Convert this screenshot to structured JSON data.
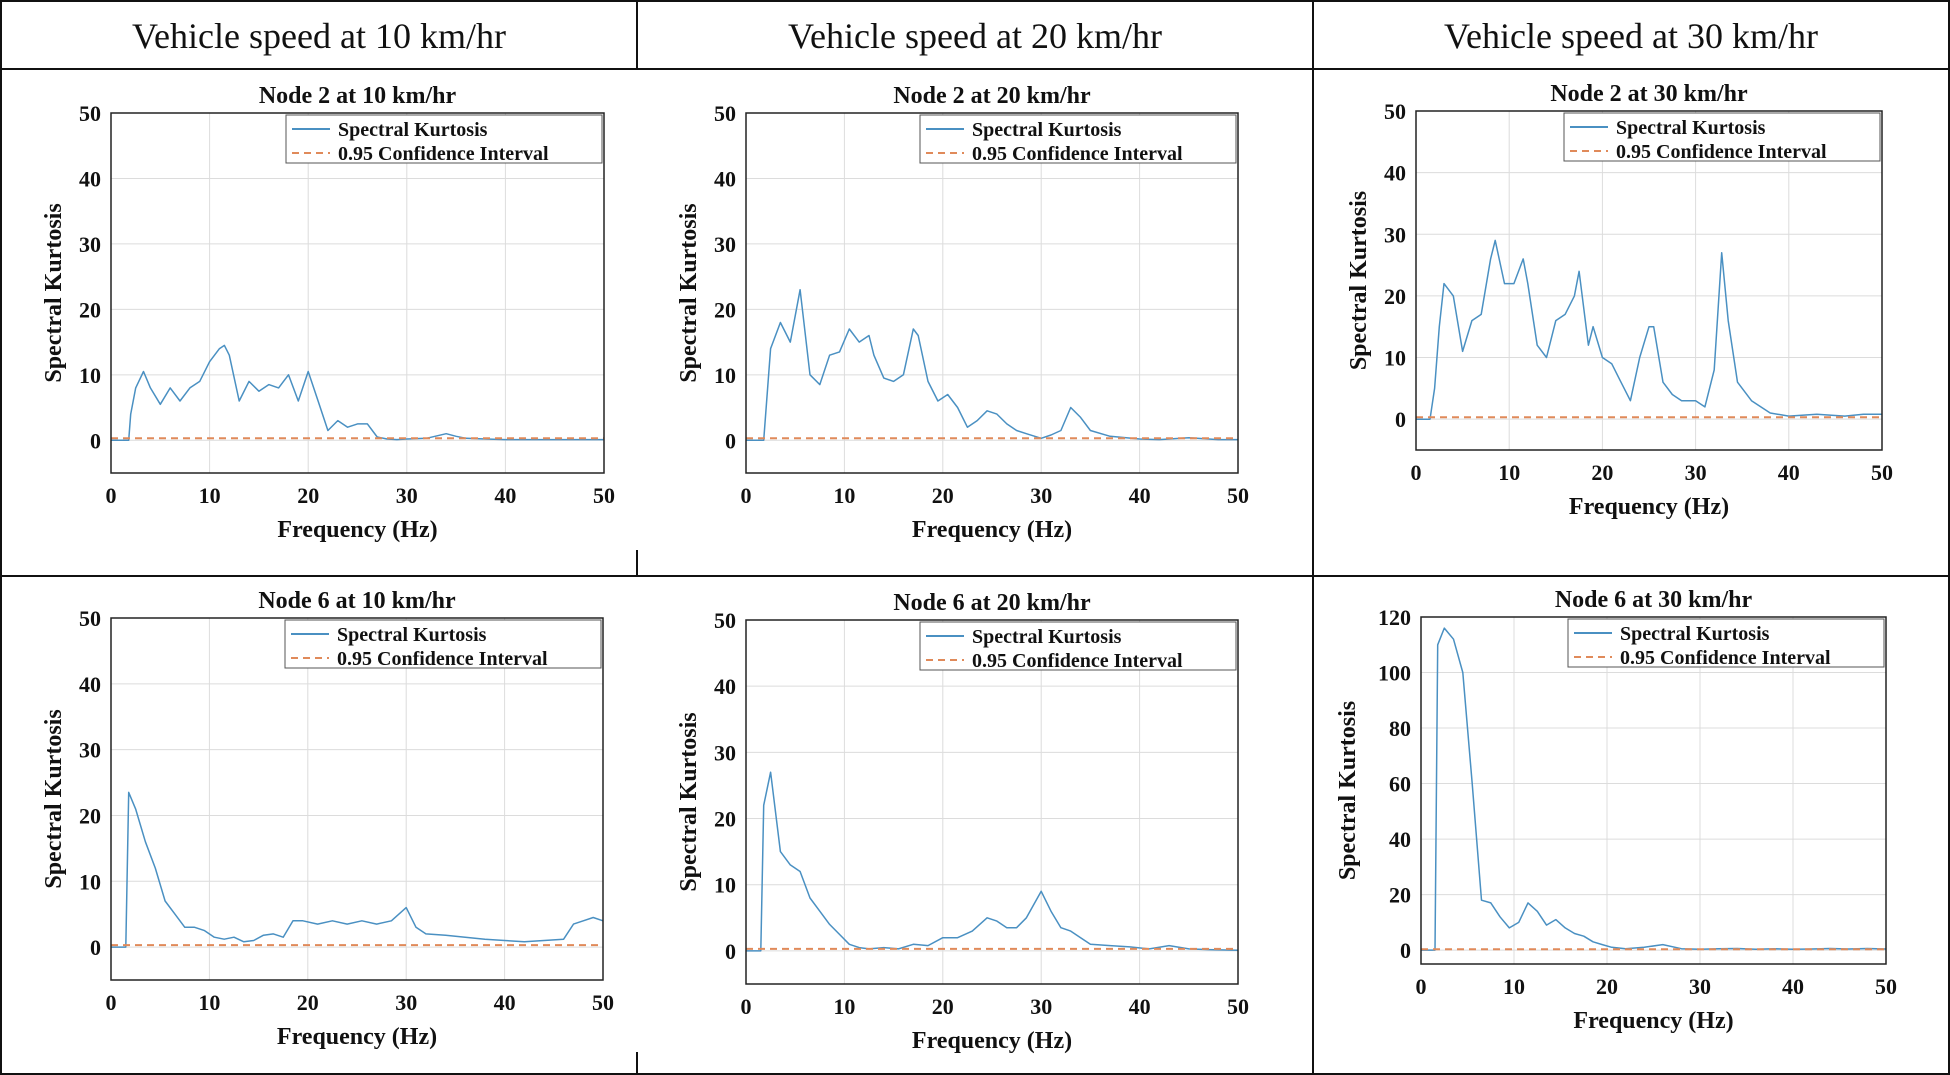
{
  "headers": [
    "Vehicle speed at 10 km/hr",
    "Vehicle speed at 20 km/hr",
    "Vehicle speed at 30 km/hr"
  ],
  "colors": {
    "series": "#4a90c2",
    "confidence": "#e08a5a",
    "grid": "#dcdcdc",
    "border": "#111111"
  },
  "chart_data": [
    {
      "type": "line",
      "title": "Node 2 at 10 km/hr",
      "xlabel": "Frequency (Hz)",
      "ylabel": "Spectral Kurtosis",
      "xlim": [
        0,
        50
      ],
      "ylim": [
        -5,
        50
      ],
      "xticks": [
        0,
        10,
        20,
        30,
        40,
        50
      ],
      "yticks": [
        0,
        10,
        20,
        30,
        40,
        50
      ],
      "grid": true,
      "legend_position": "top-right",
      "series": [
        {
          "name": "Spectral Kurtosis",
          "style": "solid",
          "x": [
            0,
            1.8,
            2,
            2.5,
            3.3,
            4,
            5,
            6,
            7,
            8,
            9,
            10,
            11,
            11.5,
            12,
            13,
            14,
            15,
            16,
            17,
            18,
            19,
            20,
            21,
            22,
            23,
            24,
            25,
            26,
            27,
            28,
            29,
            30,
            32,
            34,
            35,
            36,
            38,
            40,
            42,
            45,
            48,
            50
          ],
          "y": [
            0,
            0,
            4,
            8,
            10.5,
            8,
            5.5,
            8,
            6,
            8,
            9,
            12,
            14,
            14.5,
            13,
            6,
            9,
            7.5,
            8.5,
            8,
            10,
            6,
            10.5,
            6,
            1.5,
            3,
            2,
            2.5,
            2.5,
            0.5,
            0.2,
            0.1,
            0.2,
            0.3,
            1,
            0.6,
            0.3,
            0.2,
            0.1,
            0.1,
            0.1,
            0.1,
            0.1
          ]
        },
        {
          "name": "0.95 Confidence Interval",
          "style": "dashed",
          "x": [
            0,
            50
          ],
          "y": [
            0.3,
            0.3
          ]
        }
      ]
    },
    {
      "type": "line",
      "title": "Node 2 at 20 km/hr",
      "xlabel": "Frequency (Hz)",
      "ylabel": "Spectral Kurtosis",
      "xlim": [
        0,
        50
      ],
      "ylim": [
        -5,
        50
      ],
      "xticks": [
        0,
        10,
        20,
        30,
        40,
        50
      ],
      "yticks": [
        0,
        10,
        20,
        30,
        40,
        50
      ],
      "grid": true,
      "legend_position": "top-right",
      "series": [
        {
          "name": "Spectral Kurtosis",
          "style": "solid",
          "x": [
            0,
            1.8,
            2.5,
            3.5,
            4.5,
            5.5,
            6.5,
            7.5,
            8.5,
            9.5,
            10.5,
            11.5,
            12.5,
            13,
            14,
            15,
            16,
            17,
            17.5,
            18.5,
            19.5,
            20.5,
            21.5,
            22.5,
            23.5,
            24.5,
            25.5,
            26.5,
            27.5,
            28.5,
            30,
            31,
            32,
            33,
            34,
            35,
            37,
            40,
            42,
            45,
            48,
            50
          ],
          "y": [
            0,
            0,
            14,
            18,
            15,
            23,
            10,
            8.5,
            13,
            13.5,
            17,
            15,
            16,
            13,
            9.5,
            9,
            10,
            17,
            16,
            9,
            6,
            7,
            5,
            2,
            3,
            4.5,
            4,
            2.5,
            1.5,
            1,
            0.3,
            0.8,
            1.5,
            5,
            3.5,
            1.5,
            0.6,
            0.2,
            0.1,
            0.4,
            0.1,
            0.1
          ]
        },
        {
          "name": "0.95 Confidence Interval",
          "style": "dashed",
          "x": [
            0,
            50
          ],
          "y": [
            0.3,
            0.3
          ]
        }
      ]
    },
    {
      "type": "line",
      "title": "Node 2 at 30 km/hr",
      "xlabel": "Frequency (Hz)",
      "ylabel": "Spectral Kurtosis",
      "xlim": [
        0,
        50
      ],
      "ylim": [
        -5,
        50
      ],
      "xticks": [
        0,
        10,
        20,
        30,
        40,
        50
      ],
      "yticks": [
        0,
        10,
        20,
        30,
        40,
        50
      ],
      "grid": true,
      "legend_position": "top-right",
      "series": [
        {
          "name": "Spectral Kurtosis",
          "style": "solid",
          "x": [
            0,
            1.5,
            2,
            2.5,
            3,
            4,
            5,
            6,
            7,
            8,
            8.5,
            9.5,
            10.5,
            11.5,
            12,
            13,
            14,
            15,
            16,
            17,
            17.5,
            18.5,
            19,
            20,
            21,
            22,
            23,
            24,
            25,
            25.5,
            26.5,
            27.5,
            28.5,
            30,
            31,
            32,
            32.8,
            33.5,
            34.5,
            36,
            38,
            40,
            43,
            46,
            48,
            50
          ],
          "y": [
            0,
            0,
            5,
            15,
            22,
            20,
            11,
            16,
            17,
            26,
            29,
            22,
            22,
            26,
            22,
            12,
            10,
            16,
            17,
            20,
            24,
            12,
            15,
            10,
            9,
            6,
            3,
            10,
            15,
            15,
            6,
            4,
            3,
            3,
            2,
            8,
            27,
            16,
            6,
            3,
            1,
            0.5,
            0.8,
            0.5,
            0.8,
            0.8
          ]
        },
        {
          "name": "0.95 Confidence Interval",
          "style": "dashed",
          "x": [
            0,
            50
          ],
          "y": [
            0.3,
            0.3
          ]
        }
      ]
    },
    {
      "type": "line",
      "title": "Node 6 at 10 km/hr",
      "xlabel": "Frequency (Hz)",
      "ylabel": "Spectral Kurtosis",
      "xlim": [
        0,
        50
      ],
      "ylim": [
        -5,
        50
      ],
      "xticks": [
        0,
        10,
        20,
        30,
        40,
        50
      ],
      "yticks": [
        0,
        10,
        20,
        30,
        40,
        50
      ],
      "grid": true,
      "legend_position": "top-right",
      "series": [
        {
          "name": "Spectral Kurtosis",
          "style": "solid",
          "x": [
            0,
            1.5,
            1.8,
            2.5,
            3.5,
            4.5,
            5.5,
            6.5,
            7.5,
            8.5,
            9.5,
            10.5,
            11.5,
            12.5,
            13.5,
            14.5,
            15.5,
            16.5,
            17.5,
            18.5,
            19.5,
            21,
            22.5,
            24,
            25.5,
            27,
            28.5,
            30,
            31,
            32,
            34,
            36,
            38,
            40,
            42,
            44,
            46,
            47,
            48,
            49,
            50
          ],
          "y": [
            0,
            0,
            23.5,
            21,
            16,
            12,
            7,
            5,
            3,
            3,
            2.5,
            1.5,
            1.2,
            1.5,
            0.8,
            1,
            1.8,
            2,
            1.5,
            4,
            4,
            3.5,
            4,
            3.5,
            4,
            3.5,
            4,
            6,
            3,
            2,
            1.8,
            1.5,
            1.2,
            1,
            0.8,
            1,
            1.2,
            3.5,
            4,
            4.5,
            4
          ]
        },
        {
          "name": "0.95 Confidence Interval",
          "style": "dashed",
          "x": [
            0,
            50
          ],
          "y": [
            0.3,
            0.3
          ]
        }
      ]
    },
    {
      "type": "line",
      "title": "Node 6 at 20 km/hr",
      "xlabel": "Frequency (Hz)",
      "ylabel": "Spectral Kurtosis",
      "xlim": [
        0,
        50
      ],
      "ylim": [
        -5,
        50
      ],
      "xticks": [
        0,
        10,
        20,
        30,
        40,
        50
      ],
      "yticks": [
        0,
        10,
        20,
        30,
        40,
        50
      ],
      "grid": true,
      "legend_position": "top-right",
      "series": [
        {
          "name": "Spectral Kurtosis",
          "style": "solid",
          "x": [
            0,
            1.5,
            1.8,
            2.5,
            3.5,
            4.5,
            5.5,
            6.5,
            7.5,
            8.5,
            9.5,
            10.5,
            11.5,
            12.5,
            14,
            15.5,
            17,
            18.5,
            20,
            21.5,
            23,
            24.5,
            25.5,
            26.5,
            27.5,
            28.5,
            30,
            31,
            32,
            33,
            34,
            35,
            37,
            39,
            41,
            43,
            45,
            47,
            50
          ],
          "y": [
            0,
            0,
            22,
            27,
            15,
            13,
            12,
            8,
            6,
            4,
            2.5,
            1,
            0.5,
            0.3,
            0.5,
            0.3,
            1,
            0.8,
            2,
            2,
            3,
            5,
            4.5,
            3.5,
            3.5,
            5,
            9,
            6,
            3.5,
            3,
            2,
            1,
            0.8,
            0.6,
            0.3,
            0.8,
            0.3,
            0.2,
            0.1
          ]
        },
        {
          "name": "0.95 Confidence Interval",
          "style": "dashed",
          "x": [
            0,
            50
          ],
          "y": [
            0.3,
            0.3
          ]
        }
      ]
    },
    {
      "type": "line",
      "title": "Node 6 at 30 km/hr",
      "xlabel": "Frequency (Hz)",
      "ylabel": "Spectral Kurtosis",
      "xlim": [
        0,
        50
      ],
      "ylim": [
        -5,
        120
      ],
      "xticks": [
        0,
        10,
        20,
        30,
        40,
        50
      ],
      "yticks": [
        0,
        20,
        40,
        60,
        80,
        100,
        120
      ],
      "grid": true,
      "legend_position": "top-right",
      "series": [
        {
          "name": "Spectral Kurtosis",
          "style": "solid",
          "x": [
            0,
            1.5,
            1.8,
            2.5,
            3.5,
            4.5,
            5.5,
            6.5,
            7.5,
            8.5,
            9.5,
            10.5,
            11.5,
            12.5,
            13.5,
            14.5,
            15.5,
            16.5,
            17.5,
            18.5,
            19.5,
            20.5,
            22,
            24,
            26,
            28,
            30,
            32,
            34,
            36,
            38,
            40,
            42,
            44,
            46,
            48,
            50
          ],
          "y": [
            0,
            0,
            110,
            116,
            112,
            100,
            60,
            18,
            17,
            12,
            8,
            10,
            17,
            14,
            9,
            11,
            8,
            6,
            5,
            3,
            2,
            1,
            0.5,
            1,
            2,
            0.5,
            0.3,
            0.5,
            0.6,
            0.3,
            0.5,
            0.3,
            0.4,
            0.6,
            0.4,
            0.6,
            0.4
          ]
        },
        {
          "name": "0.95 Confidence Interval",
          "style": "dashed",
          "x": [
            0,
            50
          ],
          "y": [
            0.3,
            0.3
          ]
        }
      ]
    }
  ]
}
